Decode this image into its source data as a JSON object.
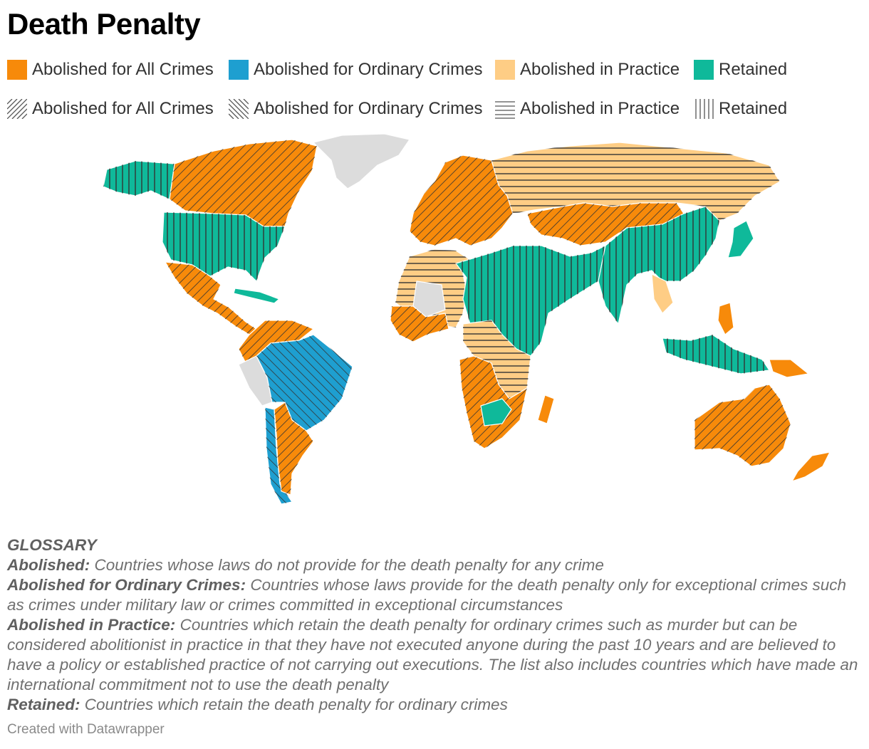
{
  "title": "Death Penalty",
  "colors": {
    "abolished_all": "#f78a0a",
    "abolished_ordinary": "#1e9fd0",
    "abolished_practice": "#fecd85",
    "retained": "#0fb99a",
    "no_data": "#dcdcdc",
    "border": "#ffffff",
    "hatch": "#333333"
  },
  "legend_colors": [
    {
      "label": "Abolished for All Crimes",
      "color": "#f78a0a"
    },
    {
      "label": "Abolished for Ordinary Crimes",
      "color": "#1e9fd0"
    },
    {
      "label": "Abolished in Practice",
      "color": "#fecd85"
    },
    {
      "label": "Retained",
      "color": "#0fb99a"
    }
  ],
  "legend_patterns": [
    {
      "label": "Abolished for All Crimes",
      "pattern": "diagonal-forward"
    },
    {
      "label": "Abolished for Ordinary Crimes",
      "pattern": "diagonal-backward"
    },
    {
      "label": "Abolished in Practice",
      "pattern": "horizontal"
    },
    {
      "label": "Retained",
      "pattern": "vertical"
    }
  ],
  "glossary": {
    "heading": "GLOSSARY",
    "abolished_term": "Abolished:",
    "abolished_def": "Countries whose laws do not provide for the death penalty for any crime",
    "ordinary_term": "Abolished for Ordinary Crimes:",
    "ordinary_def": "Countries whose laws provide for the death penalty only for exceptional crimes such as crimes under military law or crimes committed in exceptional circumstances",
    "practice_term": "Abolished in Practice:",
    "practice_def": "Countries which retain the death penalty for ordinary crimes such as murder but can be considered abolitionist in practice in that they have not executed anyone during the past 10 years and are believed to have a policy or established practice of not carrying out executions. The list also includes countries which have made an international commitment not to use the death penalty",
    "retained_term": "Retained:",
    "retained_def": "Countries which retain the death penalty for ordinary crimes"
  },
  "credit": "Created with Datawrapper"
}
